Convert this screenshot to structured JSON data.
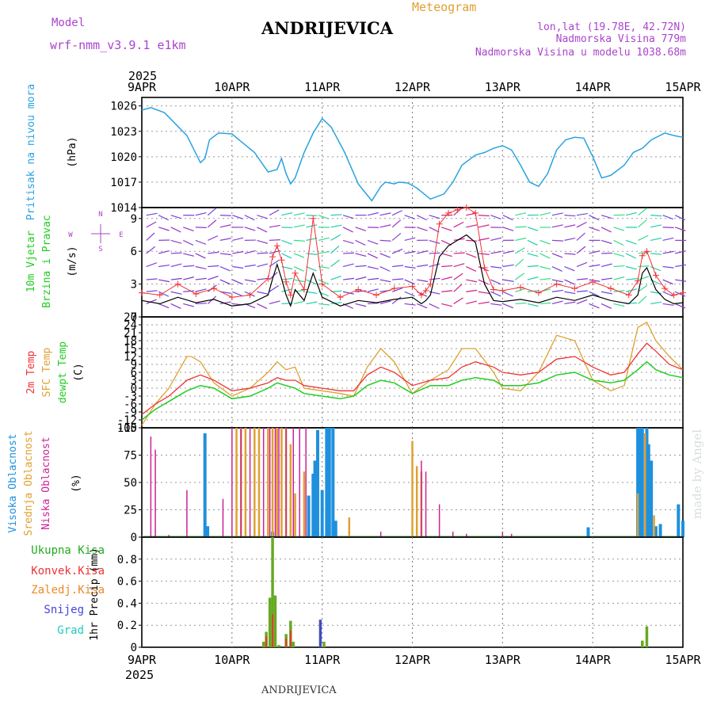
{
  "header": {
    "model_label": "Model",
    "model_name": "wrf-nmm_v3.9.1  e1km",
    "station": "ANDRIJEVICA",
    "meteogram": "Meteogram",
    "lonlat": "lon,lat (19.78E, 42.72N)",
    "elevation": "Nadmorska Visina 779m",
    "elevation_model": "Nadmorska Visina u modelu 1038.68m",
    "footer_station": "ANDRIJEVICA",
    "watermark": "made by Angel"
  },
  "axes": {
    "year": "2025",
    "day_labels": [
      "9APR",
      "10APR",
      "11APR",
      "12APR",
      "13APR",
      "14APR",
      "15APR"
    ]
  },
  "colors": {
    "pressure": "#29a3e0",
    "temp2m": "#ee3333",
    "sfc": "#e0a030",
    "dewpt": "#22cc22",
    "high_cloud": "#1e90dd",
    "mid_cloud": "#e0a030",
    "low_cloud": "#cc2299",
    "precip_total": "#66aa22",
    "precip_conv": "#ee3333",
    "snow": "#4444dd",
    "purple_text": "#aa44cc"
  },
  "chart_data": [
    {
      "type": "line",
      "title": "Pritisak na nivou mora",
      "ylabel": "(hPa)",
      "ylim": [
        1014,
        1027
      ],
      "yticks": [
        1014,
        1017,
        1020,
        1023,
        1026
      ],
      "x_unit": "days since 9APR 00UTC",
      "series": [
        {
          "name": "Pritisak na nivou mora",
          "x": [
            0,
            0.1,
            0.25,
            0.5,
            0.65,
            0.7,
            0.75,
            0.85,
            1.0,
            1.1,
            1.25,
            1.4,
            1.5,
            1.55,
            1.6,
            1.65,
            1.7,
            1.8,
            1.9,
            2.0,
            2.1,
            2.25,
            2.4,
            2.55,
            2.65,
            2.7,
            2.8,
            2.85,
            2.95,
            3.05,
            3.2,
            3.35,
            3.45,
            3.55,
            3.7,
            3.8,
            3.9,
            4.0,
            4.1,
            4.2,
            4.3,
            4.4,
            4.5,
            4.6,
            4.7,
            4.8,
            4.9,
            5.0,
            5.1,
            5.2,
            5.35,
            5.45,
            5.55,
            5.65,
            5.8,
            5.9,
            6.0
          ],
          "values": [
            1025.5,
            1025.8,
            1025.2,
            1022.5,
            1019.3,
            1019.8,
            1022.0,
            1022.8,
            1022.7,
            1021.8,
            1020.5,
            1018.2,
            1018.5,
            1019.8,
            1018.0,
            1016.8,
            1017.5,
            1020.5,
            1022.8,
            1024.5,
            1023.5,
            1020.5,
            1016.8,
            1014.8,
            1016.5,
            1017.0,
            1016.8,
            1017.0,
            1016.9,
            1016.3,
            1015.0,
            1015.6,
            1017.0,
            1019.0,
            1020.2,
            1020.5,
            1021.0,
            1021.3,
            1020.8,
            1019.0,
            1017.0,
            1016.5,
            1018.0,
            1020.8,
            1022.0,
            1022.3,
            1022.2,
            1020.0,
            1017.5,
            1017.8,
            1019.0,
            1020.5,
            1021.0,
            1022.0,
            1022.8,
            1022.5,
            1022.3
          ]
        }
      ]
    },
    {
      "type": "line",
      "title": "10m Vjetar Brzina i Pravac",
      "ylabel": "(m/s)",
      "ylim": [
        0,
        10
      ],
      "yticks": [
        0,
        3,
        6,
        9
      ],
      "compass": [
        "N",
        "E",
        "S",
        "W"
      ],
      "series": [
        {
          "name": "brzina",
          "x": [
            0,
            0.2,
            0.4,
            0.6,
            0.8,
            1.0,
            1.2,
            1.4,
            1.45,
            1.5,
            1.55,
            1.6,
            1.65,
            1.7,
            1.8,
            1.9,
            2.0,
            2.2,
            2.4,
            2.6,
            2.8,
            3.0,
            3.1,
            3.15,
            3.2,
            3.3,
            3.4,
            3.5,
            3.6,
            3.7,
            3.8,
            3.9,
            4.0,
            4.2,
            4.4,
            4.6,
            4.8,
            5.0,
            5.2,
            5.4,
            5.5,
            5.55,
            5.6,
            5.7,
            5.8,
            5.9,
            6.0
          ],
          "values": [
            1.5,
            1.2,
            1.8,
            1.3,
            1.6,
            1.0,
            1.2,
            2.0,
            3.5,
            4.8,
            3.5,
            2.0,
            1.0,
            2.5,
            1.5,
            4.0,
            1.8,
            1.0,
            1.5,
            1.3,
            1.6,
            1.8,
            1.2,
            1.5,
            2.0,
            5.5,
            6.5,
            7.0,
            7.5,
            6.8,
            3.0,
            1.5,
            1.4,
            1.6,
            1.3,
            1.8,
            1.5,
            2.0,
            1.5,
            1.2,
            2.0,
            4.0,
            4.5,
            2.5,
            1.6,
            1.2,
            1.3
          ]
        },
        {
          "name": "udari",
          "x": [
            0,
            0.2,
            0.4,
            0.6,
            0.8,
            1.0,
            1.2,
            1.4,
            1.45,
            1.5,
            1.55,
            1.6,
            1.65,
            1.7,
            1.8,
            1.9,
            2.0,
            2.2,
            2.4,
            2.6,
            2.8,
            3.0,
            3.1,
            3.15,
            3.2,
            3.3,
            3.4,
            3.5,
            3.6,
            3.7,
            3.8,
            3.9,
            4.0,
            4.2,
            4.4,
            4.6,
            4.8,
            5.0,
            5.2,
            5.4,
            5.5,
            5.55,
            5.6,
            5.7,
            5.8,
            5.9,
            6.0
          ],
          "values": [
            2.2,
            2.0,
            3.0,
            2.1,
            2.6,
            1.8,
            2.0,
            3.5,
            5.5,
            6.5,
            5.2,
            3.2,
            2.0,
            4.0,
            2.5,
            9.0,
            3.0,
            1.8,
            2.5,
            2.0,
            2.6,
            2.8,
            2.0,
            2.4,
            3.0,
            8.5,
            9.5,
            9.8,
            10,
            9.5,
            4.5,
            2.5,
            2.4,
            2.7,
            2.2,
            3.0,
            2.6,
            3.2,
            2.6,
            2.0,
            3.3,
            5.6,
            6.0,
            3.8,
            2.6,
            2.0,
            2.2
          ]
        }
      ]
    },
    {
      "type": "line",
      "title": "2m Temp / SFC Temp / dewpt Temp",
      "ylabel": "(C)",
      "ylim": [
        -15,
        27
      ],
      "yticks": [
        -15,
        -12,
        -9,
        -6,
        -3,
        0,
        3,
        6,
        9,
        12,
        15,
        18,
        21,
        24,
        27
      ],
      "series": [
        {
          "name": "2m Temp",
          "x": [
            0,
            0.15,
            0.3,
            0.5,
            0.65,
            0.8,
            1.0,
            1.2,
            1.4,
            1.5,
            1.6,
            1.7,
            1.8,
            2.0,
            2.2,
            2.35,
            2.5,
            2.65,
            2.8,
            3.0,
            3.2,
            3.4,
            3.55,
            3.7,
            3.9,
            4.0,
            4.2,
            4.4,
            4.6,
            4.8,
            5.0,
            5.2,
            5.35,
            5.5,
            5.6,
            5.7,
            5.85,
            6.0
          ],
          "values": [
            -10,
            -6,
            -3,
            3,
            5,
            3,
            -1,
            0,
            2,
            4,
            3,
            3,
            1,
            0,
            -1,
            -1,
            5,
            8,
            6,
            1,
            3,
            4,
            8,
            10,
            8,
            6,
            5,
            6,
            11,
            12,
            8,
            5,
            6,
            13,
            17,
            14,
            9,
            7
          ]
        },
        {
          "name": "SFC Temp",
          "x": [
            0,
            0.15,
            0.3,
            0.5,
            0.55,
            0.65,
            0.8,
            1.0,
            1.2,
            1.4,
            1.5,
            1.6,
            1.7,
            1.8,
            2.0,
            2.2,
            2.35,
            2.5,
            2.65,
            2.8,
            3.0,
            3.2,
            3.4,
            3.55,
            3.7,
            3.9,
            4.0,
            4.2,
            4.4,
            4.6,
            4.8,
            5.0,
            5.2,
            5.35,
            5.5,
            5.6,
            5.7,
            5.85,
            6.0
          ],
          "values": [
            -14,
            -6,
            0,
            12,
            12,
            10,
            2,
            -3,
            0,
            6,
            10,
            7,
            8,
            0,
            -1,
            -2,
            -3,
            8,
            15,
            10,
            -2,
            3,
            7,
            15,
            15,
            6,
            0,
            -1,
            6,
            20,
            18,
            3,
            -1,
            1,
            23,
            25,
            18,
            12,
            7
          ]
        },
        {
          "name": "dewpt Temp",
          "x": [
            0,
            0.15,
            0.3,
            0.5,
            0.65,
            0.8,
            1.0,
            1.2,
            1.4,
            1.5,
            1.6,
            1.7,
            1.8,
            2.0,
            2.2,
            2.35,
            2.5,
            2.65,
            2.8,
            3.0,
            3.2,
            3.4,
            3.55,
            3.7,
            3.9,
            4.0,
            4.2,
            4.4,
            4.6,
            4.8,
            5.0,
            5.2,
            5.35,
            5.5,
            5.6,
            5.7,
            5.85,
            6.0
          ],
          "values": [
            -12,
            -8,
            -5,
            -1,
            1,
            0,
            -4,
            -3,
            0,
            2,
            1,
            0,
            -2,
            -3,
            -4,
            -3,
            1,
            3,
            2,
            -2,
            1,
            1,
            3,
            4,
            3,
            1,
            1,
            2,
            5,
            6,
            3,
            2,
            3,
            7,
            10,
            7,
            5,
            4
          ]
        }
      ]
    },
    {
      "type": "bar",
      "title": "Visoka Oblacnost / Srednja Oblacnost / Niska Oblacnost",
      "ylabel": "(%)",
      "ylim": [
        0,
        100
      ],
      "yticks": [
        0,
        25,
        50,
        75,
        100
      ],
      "series": [
        {
          "name": "Visoka Oblacnost",
          "x": [
            0.7,
            0.73,
            1.45,
            1.85,
            1.9,
            1.92,
            1.95,
            2.0,
            2.05,
            2.08,
            2.12,
            2.15,
            4.95,
            5.5,
            5.52,
            5.55,
            5.6,
            5.62,
            5.65,
            5.7,
            5.75,
            5.95,
            6.0
          ],
          "values": [
            95,
            10,
            5,
            38,
            58,
            70,
            98,
            43,
            100,
            100,
            100,
            15,
            9,
            100,
            100,
            100,
            100,
            85,
            70,
            10,
            12,
            30,
            15
          ]
        },
        {
          "name": "Srednja Oblacnost",
          "x": [
            1.05,
            1.1,
            1.15,
            1.25,
            1.3,
            1.4,
            1.45,
            1.5,
            1.55,
            1.6,
            1.65,
            1.7,
            1.8,
            2.3,
            3.0,
            3.05,
            3.1,
            5.5,
            5.58,
            5.68
          ],
          "values": [
            100,
            100,
            100,
            100,
            100,
            100,
            100,
            100,
            100,
            100,
            85,
            40,
            60,
            18,
            88,
            65,
            60,
            40,
            95,
            20
          ]
        },
        {
          "name": "Niska Oblacnost",
          "x": [
            0.1,
            0.15,
            0.3,
            0.5,
            0.9,
            1.0,
            1.1,
            1.2,
            1.35,
            1.42,
            1.48,
            1.52,
            1.6,
            1.68,
            1.75,
            1.82,
            2.65,
            3.1,
            3.15,
            3.3,
            3.45,
            3.6,
            4.0,
            4.1
          ],
          "values": [
            92,
            80,
            2,
            43,
            35,
            100,
            100,
            100,
            100,
            100,
            100,
            100,
            100,
            100,
            100,
            100,
            5,
            70,
            60,
            30,
            5,
            3,
            5,
            3
          ]
        }
      ]
    },
    {
      "type": "bar",
      "title": "1hr Precip",
      "ylabel": "1hr Precip (mm)",
      "ylim": [
        0,
        1
      ],
      "yticks": [
        0,
        0.2,
        0.4,
        0.6,
        0.8
      ],
      "legend": [
        "Ukupna Kisa",
        "Konvek.Kisa",
        "Zaledj.Kisa",
        "Snijeg",
        "Grad"
      ],
      "series": [
        {
          "name": "Ukupna Kisa",
          "x": [
            1.35,
            1.38,
            1.42,
            1.45,
            1.48,
            1.52,
            1.6,
            1.65,
            1.68,
            1.98,
            2.02,
            5.55,
            5.6
          ],
          "values": [
            0.05,
            0.14,
            0.45,
            1.0,
            0.47,
            0.02,
            0.12,
            0.24,
            0.05,
            0.25,
            0.05,
            0.06,
            0.19
          ]
        },
        {
          "name": "Konvek.Kisa",
          "x": [
            1.38,
            1.45,
            1.6,
            1.65
          ],
          "values": [
            0.1,
            0.3,
            0.08,
            0.15
          ]
        },
        {
          "name": "Snijeg",
          "x": [
            1.98
          ],
          "values": [
            0.25
          ]
        }
      ]
    }
  ],
  "panel_labels": {
    "pressure": {
      "line1": "Pritisak na nivou mora",
      "unit": "(hPa)"
    },
    "wind": {
      "line1": "10m Vjetar",
      "line2": "Brzina i Pravac",
      "unit": "(m/s)"
    },
    "temp": {
      "t1": "2m Temp",
      "t2": "SFC Temp",
      "t3": "dewpt Temp",
      "unit": "(C)"
    },
    "cloud": {
      "c1": "Visoka Oblacnost",
      "c2": "Srednja Oblacnost",
      "c3": "Niska Oblacnost",
      "unit": "(%)"
    },
    "precip": {
      "l1": "Ukupna Kisa",
      "l2": "Konvek.Kisa",
      "l3": "Zaledj.Kisa",
      "l4": "Snijeg",
      "l5": "Grad",
      "unit": "1hr Precip (mm)"
    }
  }
}
